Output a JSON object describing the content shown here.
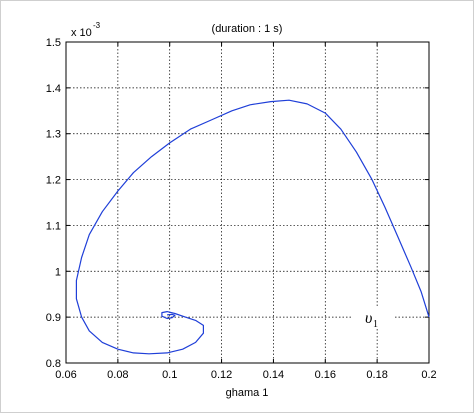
{
  "chart_data": {
    "type": "line",
    "title": "(duration : 1 s)",
    "xlabel": "ghama 1",
    "ylabel": "",
    "y_multiplier": "x 10",
    "y_exponent": "-3",
    "xlim": [
      0.06,
      0.2
    ],
    "ylim": [
      0.8,
      1.5
    ],
    "x_ticks": [
      "0.06",
      "0.08",
      "0.1",
      "0.12",
      "0.14",
      "0.16",
      "0.18",
      "0.2"
    ],
    "y_ticks": [
      "0.8",
      "0.9",
      "1",
      "1.1",
      "1.2",
      "1.3",
      "1.4",
      "1.5"
    ],
    "grid": true,
    "line_color": "#1f3fd8",
    "series": [
      {
        "x": [
          0.2,
          0.197,
          0.193,
          0.188,
          0.183,
          0.178,
          0.172,
          0.166,
          0.16,
          0.153,
          0.146,
          0.139,
          0.131,
          0.124,
          0.116,
          0.108,
          0.1,
          0.093,
          0.086,
          0.08,
          0.074,
          0.069,
          0.066,
          0.064,
          0.064,
          0.066,
          0.069,
          0.074,
          0.08,
          0.086,
          0.092,
          0.099,
          0.105,
          0.11,
          0.113,
          0.113,
          0.11,
          0.106,
          0.102,
          0.099,
          0.097,
          0.097,
          0.099,
          0.101,
          0.102,
          0.101,
          0.099
        ],
        "y": [
          0.9,
          0.955,
          1.01,
          1.075,
          1.14,
          1.2,
          1.26,
          1.31,
          1.345,
          1.365,
          1.373,
          1.37,
          1.363,
          1.35,
          1.33,
          1.31,
          1.28,
          1.25,
          1.215,
          1.175,
          1.13,
          1.08,
          1.03,
          0.98,
          0.94,
          0.9,
          0.87,
          0.845,
          0.83,
          0.822,
          0.82,
          0.822,
          0.83,
          0.845,
          0.865,
          0.882,
          0.893,
          0.9,
          0.908,
          0.912,
          0.91,
          0.902,
          0.897,
          0.899,
          0.904,
          0.906,
          0.905
        ]
      }
    ],
    "annotation": {
      "text": "υ",
      "subscript": "1",
      "x": 0.178,
      "y": 0.9
    }
  }
}
